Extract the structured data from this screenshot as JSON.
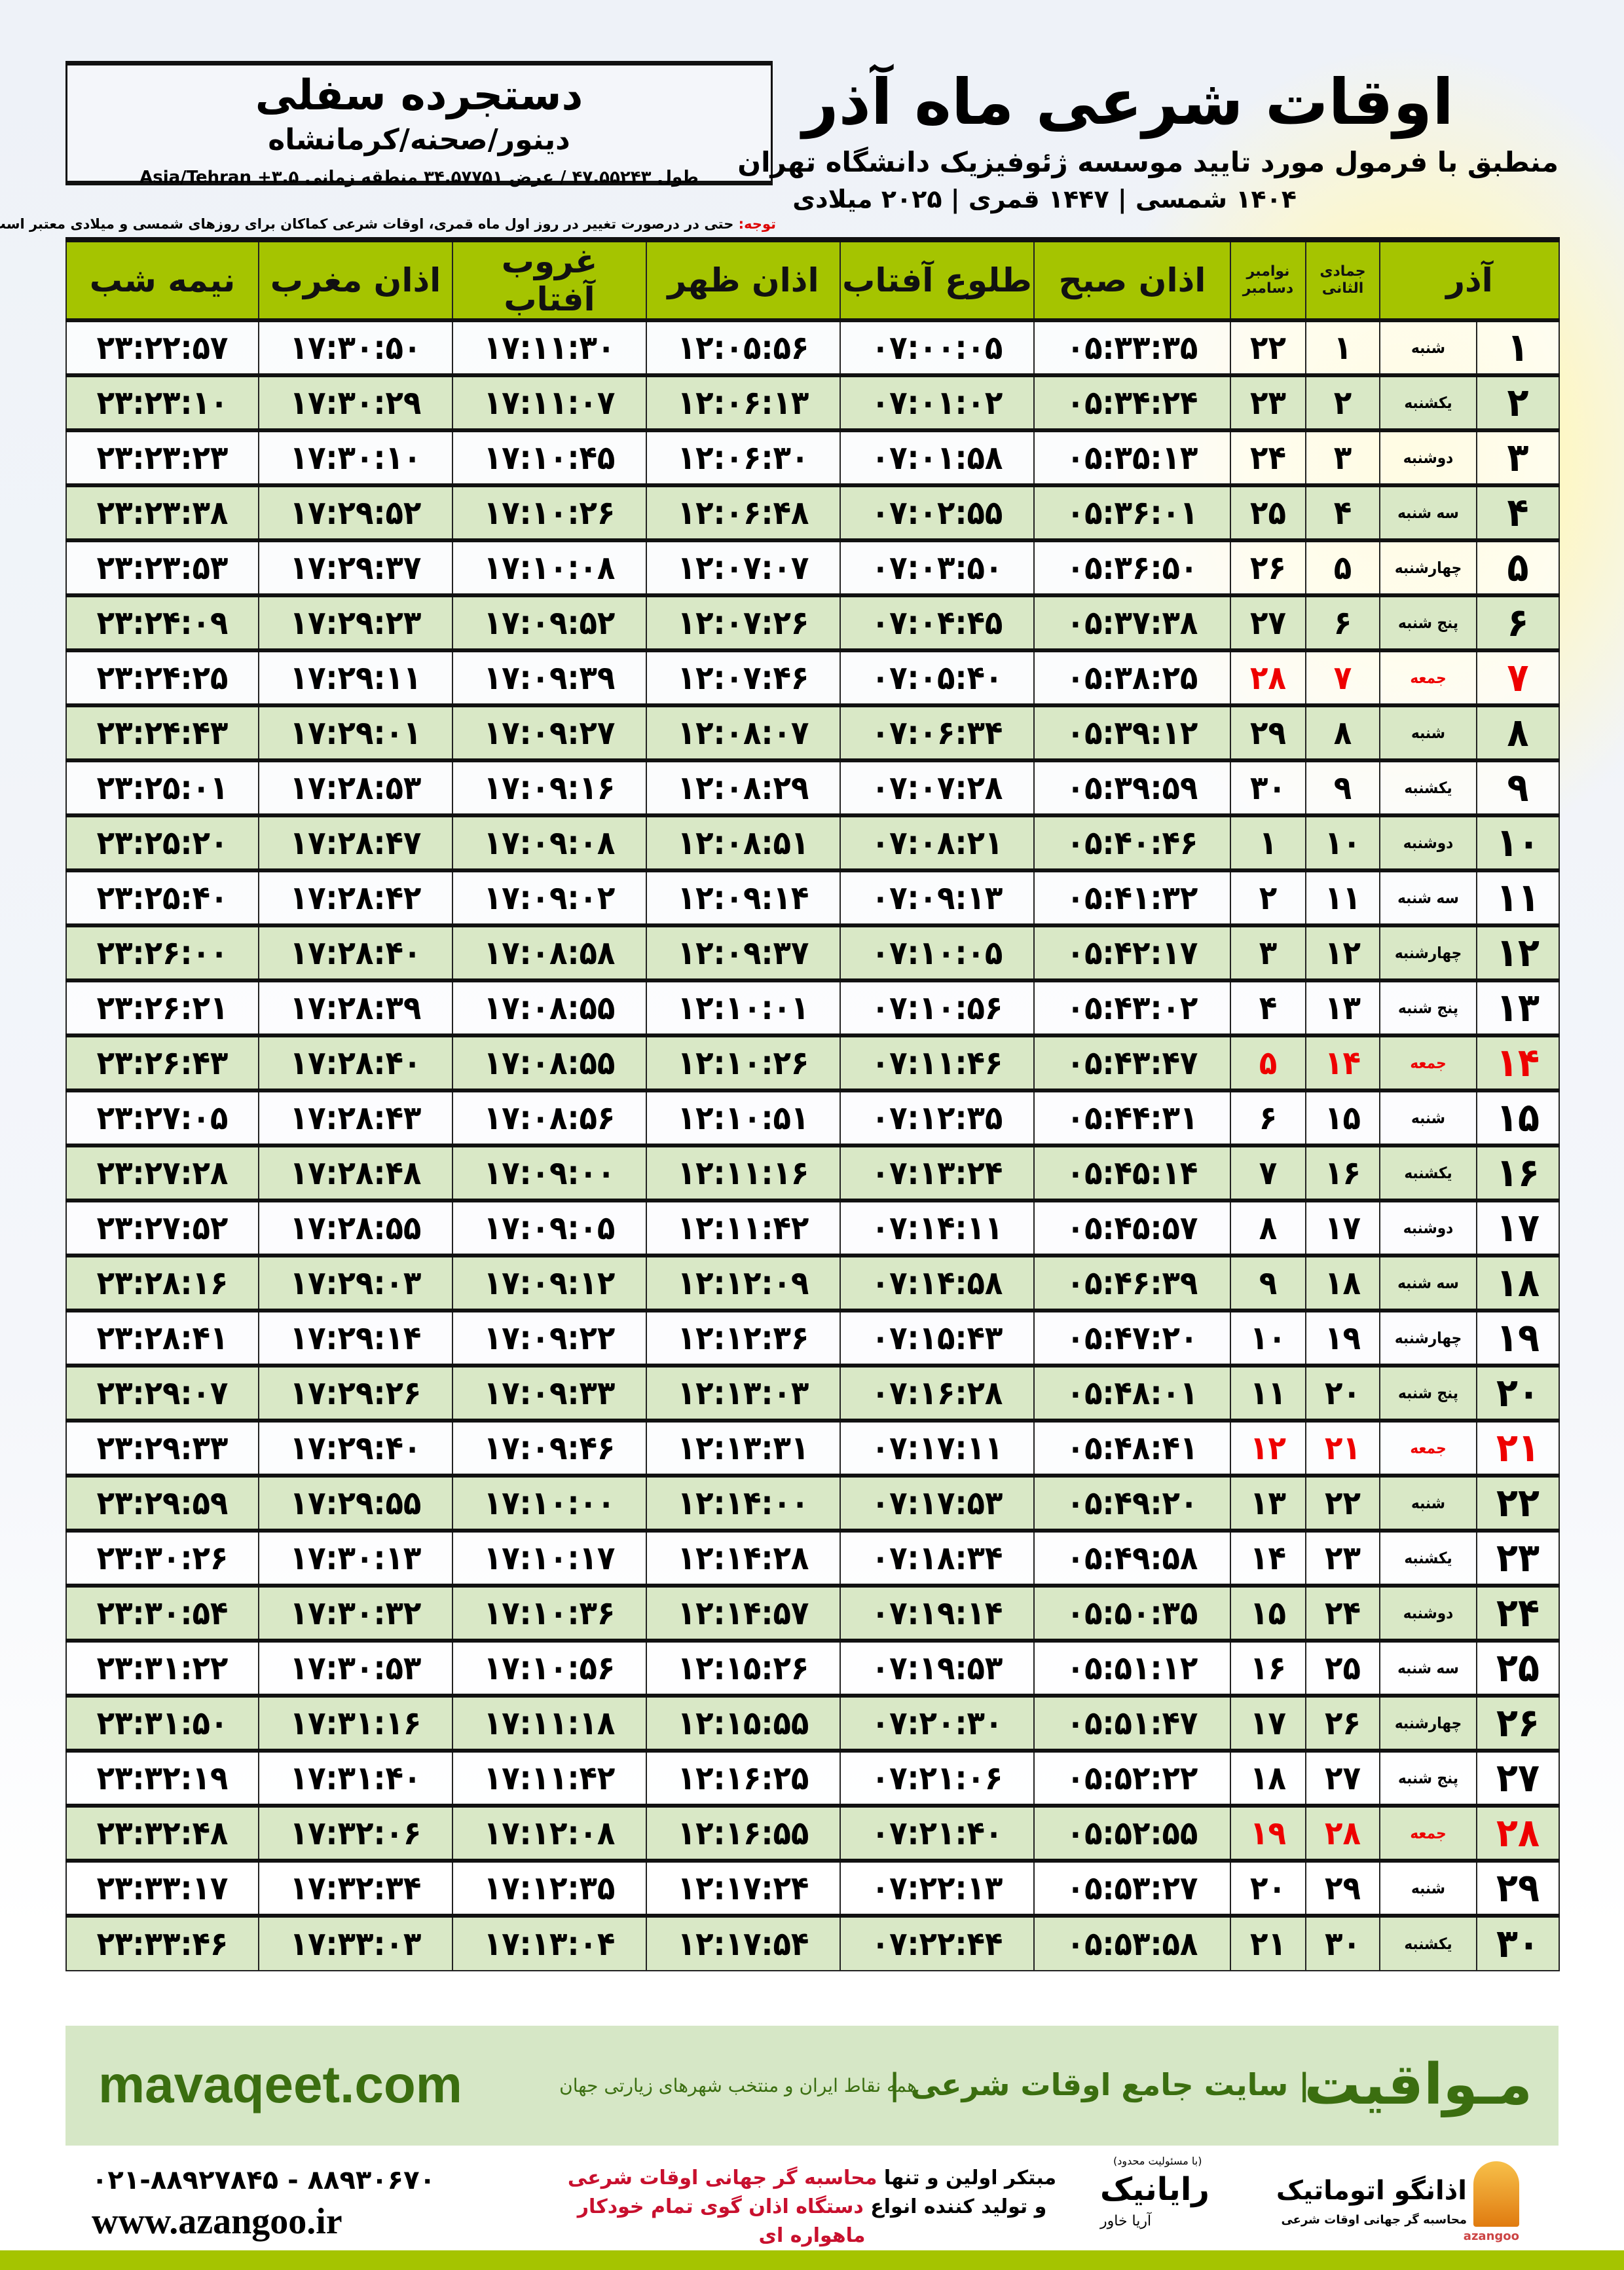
{
  "location": {
    "name": "دستجرده سفلی",
    "region": "دینور/صحنه/کرمانشاه",
    "coords": "طول ۴۷.۵۵۲۴۳ / عرض ۳۴.۵۷۷۵۱ منطقه زمانی ۳.۵+ Asia/Tehran"
  },
  "header": {
    "title": "اوقات شرعی ماه آذر",
    "subtitle": "منطبق با فرمول مورد تایید موسسه ژئوفیزیک دانشگاه تهران",
    "years": "۱۴۰۴ شمسی | ۱۴۴۷ قمری | ۲۰۲۵ میلادی"
  },
  "note": {
    "label": "توجه:",
    "text": " حتی در درصورت تغییر در روز اول ماه قمری، اوقات شرعی کماکان برای روزهای شمسی و میلادی معتبر است."
  },
  "table": {
    "headers": {
      "month": "آذر",
      "hijri": "جمادی الثانی",
      "greg_top": "نوامبر",
      "greg_bottom": "دسامبر",
      "fajr": "اذان صبح",
      "sunrise": "طلوع آفتاب",
      "dhuhr": "اذان ظهر",
      "sunset": "غروب آفتاب",
      "maghrib": "اذان مغرب",
      "midnight": "نیمه شب"
    },
    "holiday_color": "#e00000",
    "header_color": "#a5c400",
    "rows": [
      [
        "۱",
        "شنبه",
        "۱",
        "۲۲",
        "۰۵:۳۳:۳۵",
        "۰۷:۰۰:۰۵",
        "۱۲:۰۵:۵۶",
        "۱۷:۱۱:۳۰",
        "۱۷:۳۰:۵۰",
        "۲۳:۲۲:۵۷"
      ],
      [
        "۲",
        "یکشنبه",
        "۲",
        "۲۳",
        "۰۵:۳۴:۲۴",
        "۰۷:۰۱:۰۲",
        "۱۲:۰۶:۱۳",
        "۱۷:۱۱:۰۷",
        "۱۷:۳۰:۲۹",
        "۲۳:۲۳:۱۰"
      ],
      [
        "۳",
        "دوشنبه",
        "۳",
        "۲۴",
        "۰۵:۳۵:۱۳",
        "۰۷:۰۱:۵۸",
        "۱۲:۰۶:۳۰",
        "۱۷:۱۰:۴۵",
        "۱۷:۳۰:۱۰",
        "۲۳:۲۳:۲۳"
      ],
      [
        "۴",
        "سه شنبه",
        "۴",
        "۲۵",
        "۰۵:۳۶:۰۱",
        "۰۷:۰۲:۵۵",
        "۱۲:۰۶:۴۸",
        "۱۷:۱۰:۲۶",
        "۱۷:۲۹:۵۲",
        "۲۳:۲۳:۳۸"
      ],
      [
        "۵",
        "چهارشنبه",
        "۵",
        "۲۶",
        "۰۵:۳۶:۵۰",
        "۰۷:۰۳:۵۰",
        "۱۲:۰۷:۰۷",
        "۱۷:۱۰:۰۸",
        "۱۷:۲۹:۳۷",
        "۲۳:۲۳:۵۳"
      ],
      [
        "۶",
        "پنج شنبه",
        "۶",
        "۲۷",
        "۰۵:۳۷:۳۸",
        "۰۷:۰۴:۴۵",
        "۱۲:۰۷:۲۶",
        "۱۷:۰۹:۵۲",
        "۱۷:۲۹:۲۳",
        "۲۳:۲۴:۰۹"
      ],
      [
        "۷",
        "جمعه",
        "۷",
        "۲۸",
        "۰۵:۳۸:۲۵",
        "۰۷:۰۵:۴۰",
        "۱۲:۰۷:۴۶",
        "۱۷:۰۹:۳۹",
        "۱۷:۲۹:۱۱",
        "۲۳:۲۴:۲۵"
      ],
      [
        "۸",
        "شنبه",
        "۸",
        "۲۹",
        "۰۵:۳۹:۱۲",
        "۰۷:۰۶:۳۴",
        "۱۲:۰۸:۰۷",
        "۱۷:۰۹:۲۷",
        "۱۷:۲۹:۰۱",
        "۲۳:۲۴:۴۳"
      ],
      [
        "۹",
        "یکشنبه",
        "۹",
        "۳۰",
        "۰۵:۳۹:۵۹",
        "۰۷:۰۷:۲۸",
        "۱۲:۰۸:۲۹",
        "۱۷:۰۹:۱۶",
        "۱۷:۲۸:۵۳",
        "۲۳:۲۵:۰۱"
      ],
      [
        "۱۰",
        "دوشنبه",
        "۱۰",
        "۱",
        "۰۵:۴۰:۴۶",
        "۰۷:۰۸:۲۱",
        "۱۲:۰۸:۵۱",
        "۱۷:۰۹:۰۸",
        "۱۷:۲۸:۴۷",
        "۲۳:۲۵:۲۰"
      ],
      [
        "۱۱",
        "سه شنبه",
        "۱۱",
        "۲",
        "۰۵:۴۱:۳۲",
        "۰۷:۰۹:۱۳",
        "۱۲:۰۹:۱۴",
        "۱۷:۰۹:۰۲",
        "۱۷:۲۸:۴۲",
        "۲۳:۲۵:۴۰"
      ],
      [
        "۱۲",
        "چهارشنبه",
        "۱۲",
        "۳",
        "۰۵:۴۲:۱۷",
        "۰۷:۱۰:۰۵",
        "۱۲:۰۹:۳۷",
        "۱۷:۰۸:۵۸",
        "۱۷:۲۸:۴۰",
        "۲۳:۲۶:۰۰"
      ],
      [
        "۱۳",
        "پنج شنبه",
        "۱۳",
        "۴",
        "۰۵:۴۳:۰۲",
        "۰۷:۱۰:۵۶",
        "۱۲:۱۰:۰۱",
        "۱۷:۰۸:۵۵",
        "۱۷:۲۸:۳۹",
        "۲۳:۲۶:۲۱"
      ],
      [
        "۱۴",
        "جمعه",
        "۱۴",
        "۵",
        "۰۵:۴۳:۴۷",
        "۰۷:۱۱:۴۶",
        "۱۲:۱۰:۲۶",
        "۱۷:۰۸:۵۵",
        "۱۷:۲۸:۴۰",
        "۲۳:۲۶:۴۳"
      ],
      [
        "۱۵",
        "شنبه",
        "۱۵",
        "۶",
        "۰۵:۴۴:۳۱",
        "۰۷:۱۲:۳۵",
        "۱۲:۱۰:۵۱",
        "۱۷:۰۸:۵۶",
        "۱۷:۲۸:۴۳",
        "۲۳:۲۷:۰۵"
      ],
      [
        "۱۶",
        "یکشنبه",
        "۱۶",
        "۷",
        "۰۵:۴۵:۱۴",
        "۰۷:۱۳:۲۴",
        "۱۲:۱۱:۱۶",
        "۱۷:۰۹:۰۰",
        "۱۷:۲۸:۴۸",
        "۲۳:۲۷:۲۸"
      ],
      [
        "۱۷",
        "دوشنبه",
        "۱۷",
        "۸",
        "۰۵:۴۵:۵۷",
        "۰۷:۱۴:۱۱",
        "۱۲:۱۱:۴۲",
        "۱۷:۰۹:۰۵",
        "۱۷:۲۸:۵۵",
        "۲۳:۲۷:۵۲"
      ],
      [
        "۱۸",
        "سه شنبه",
        "۱۸",
        "۹",
        "۰۵:۴۶:۳۹",
        "۰۷:۱۴:۵۸",
        "۱۲:۱۲:۰۹",
        "۱۷:۰۹:۱۲",
        "۱۷:۲۹:۰۳",
        "۲۳:۲۸:۱۶"
      ],
      [
        "۱۹",
        "چهارشنبه",
        "۱۹",
        "۱۰",
        "۰۵:۴۷:۲۰",
        "۰۷:۱۵:۴۳",
        "۱۲:۱۲:۳۶",
        "۱۷:۰۹:۲۲",
        "۱۷:۲۹:۱۴",
        "۲۳:۲۸:۴۱"
      ],
      [
        "۲۰",
        "پنج شنبه",
        "۲۰",
        "۱۱",
        "۰۵:۴۸:۰۱",
        "۰۷:۱۶:۲۸",
        "۱۲:۱۳:۰۳",
        "۱۷:۰۹:۳۳",
        "۱۷:۲۹:۲۶",
        "۲۳:۲۹:۰۷"
      ],
      [
        "۲۱",
        "جمعه",
        "۲۱",
        "۱۲",
        "۰۵:۴۸:۴۱",
        "۰۷:۱۷:۱۱",
        "۱۲:۱۳:۳۱",
        "۱۷:۰۹:۴۶",
        "۱۷:۲۹:۴۰",
        "۲۳:۲۹:۳۳"
      ],
      [
        "۲۲",
        "شنبه",
        "۲۲",
        "۱۳",
        "۰۵:۴۹:۲۰",
        "۰۷:۱۷:۵۳",
        "۱۲:۱۴:۰۰",
        "۱۷:۱۰:۰۰",
        "۱۷:۲۹:۵۵",
        "۲۳:۲۹:۵۹"
      ],
      [
        "۲۳",
        "یکشنبه",
        "۲۳",
        "۱۴",
        "۰۵:۴۹:۵۸",
        "۰۷:۱۸:۳۴",
        "۱۲:۱۴:۲۸",
        "۱۷:۱۰:۱۷",
        "۱۷:۳۰:۱۳",
        "۲۳:۳۰:۲۶"
      ],
      [
        "۲۴",
        "دوشنبه",
        "۲۴",
        "۱۵",
        "۰۵:۵۰:۳۵",
        "۰۷:۱۹:۱۴",
        "۱۲:۱۴:۵۷",
        "۱۷:۱۰:۳۶",
        "۱۷:۳۰:۳۲",
        "۲۳:۳۰:۵۴"
      ],
      [
        "۲۵",
        "سه شنبه",
        "۲۵",
        "۱۶",
        "۰۵:۵۱:۱۲",
        "۰۷:۱۹:۵۳",
        "۱۲:۱۵:۲۶",
        "۱۷:۱۰:۵۶",
        "۱۷:۳۰:۵۳",
        "۲۳:۳۱:۲۲"
      ],
      [
        "۲۶",
        "چهارشنبه",
        "۲۶",
        "۱۷",
        "۰۵:۵۱:۴۷",
        "۰۷:۲۰:۳۰",
        "۱۲:۱۵:۵۵",
        "۱۷:۱۱:۱۸",
        "۱۷:۳۱:۱۶",
        "۲۳:۳۱:۵۰"
      ],
      [
        "۲۷",
        "پنج شنبه",
        "۲۷",
        "۱۸",
        "۰۵:۵۲:۲۲",
        "۰۷:۲۱:۰۶",
        "۱۲:۱۶:۲۵",
        "۱۷:۱۱:۴۲",
        "۱۷:۳۱:۴۰",
        "۲۳:۳۲:۱۹"
      ],
      [
        "۲۸",
        "جمعه",
        "۲۸",
        "۱۹",
        "۰۵:۵۲:۵۵",
        "۰۷:۲۱:۴۰",
        "۱۲:۱۶:۵۵",
        "۱۷:۱۲:۰۸",
        "۱۷:۳۲:۰۶",
        "۲۳:۳۲:۴۸"
      ],
      [
        "۲۹",
        "شنبه",
        "۲۹",
        "۲۰",
        "۰۵:۵۳:۲۷",
        "۰۷:۲۲:۱۳",
        "۱۲:۱۷:۲۴",
        "۱۷:۱۲:۳۵",
        "۱۷:۳۲:۳۴",
        "۲۳:۳۳:۱۷"
      ],
      [
        "۳۰",
        "یکشنبه",
        "۳۰",
        "۲۱",
        "۰۵:۵۳:۵۸",
        "۰۷:۲۲:۴۴",
        "۱۲:۱۷:۵۴",
        "۱۷:۱۳:۰۴",
        "۱۷:۳۳:۰۳",
        "۲۳:۳۳:۴۶"
      ]
    ],
    "holiday_weekday": "جمعه"
  },
  "footer": {
    "brand": "مـواقیت",
    "tagline": "| سایت جامع اوقات شرعی |",
    "tagline2": "همه نقاط ایران و منتخب شهرهای زیارتی جهان",
    "site": "mavaqeet.com"
  },
  "credits": {
    "phone": "۰۲۱-۸۸۹۲۷۸۴۵ - ۸۸۹۳۰۶۷۰",
    "www": "www.azangoo.ir",
    "promo1a": "مبتکر اولین و تنها ",
    "promo1b": "محاسبه گر جهانی اوقات شرعی",
    "promo2a": "و تولید کننده انواع ",
    "promo2b": "دستگاه اذان گوی تمام خودکار ماهواره ای",
    "rayanik": "رایانیک",
    "rayanik_small": "(با مسئولیت محدود)",
    "khavar": "آریا خاور",
    "az_name": "اذانگو اتوماتیک",
    "az_sub": "محاسبه گر جهانی اوقات شرعی",
    "az_en": "azangoo"
  }
}
